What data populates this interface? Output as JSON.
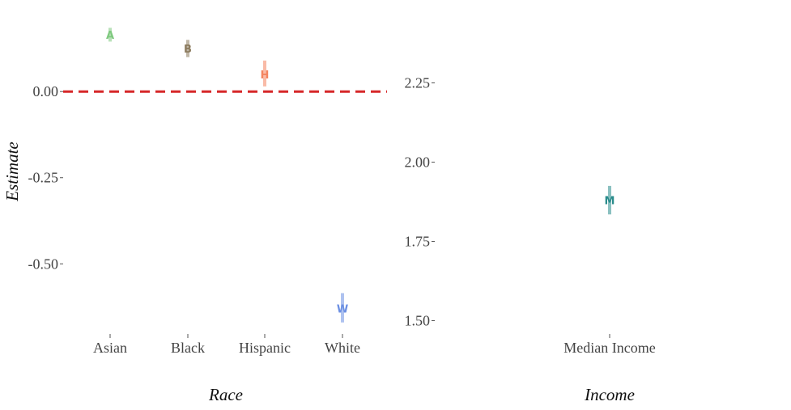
{
  "chart_data": [
    {
      "type": "scatter",
      "panel": "left",
      "xlabel": "Race",
      "ylabel": "Estimate",
      "categories": [
        "Asian",
        "Black",
        "Hispanic",
        "White"
      ],
      "ylim": [
        -0.72,
        0.2
      ],
      "yticks": [
        0.0,
        -0.25,
        -0.5
      ],
      "ytick_labels": [
        "0.00",
        "-0.25",
        "-0.50"
      ],
      "reference_line": {
        "y": 0.0,
        "style": "dashed",
        "color": "#d62728"
      },
      "points": [
        {
          "category": "Asian",
          "label": "A",
          "estimate": 0.165,
          "low": 0.145,
          "high": 0.185,
          "color": "#7fc97f"
        },
        {
          "category": "Black",
          "label": "B",
          "estimate": 0.125,
          "low": 0.1,
          "high": 0.15,
          "color": "#8c7b5e"
        },
        {
          "category": "Hispanic",
          "label": "H",
          "estimate": 0.05,
          "low": 0.015,
          "high": 0.09,
          "color": "#f4845f"
        },
        {
          "category": "White",
          "label": "W",
          "estimate": -0.63,
          "low": -0.67,
          "high": -0.585,
          "color": "#6b8fe3"
        }
      ],
      "grid": false
    },
    {
      "type": "scatter",
      "panel": "right",
      "xlabel": "Income",
      "ylabel": "",
      "categories": [
        "Median Income"
      ],
      "ylim": [
        1.44,
        2.44
      ],
      "yticks": [
        2.25,
        2.0,
        1.75,
        1.5
      ],
      "ytick_labels": [
        "2.25",
        "2.00",
        "1.75",
        "1.50"
      ],
      "points": [
        {
          "category": "Median Income",
          "label": "M",
          "estimate": 1.88,
          "low": 1.835,
          "high": 1.925,
          "color": "#2a8c8c"
        }
      ],
      "grid": false
    }
  ]
}
